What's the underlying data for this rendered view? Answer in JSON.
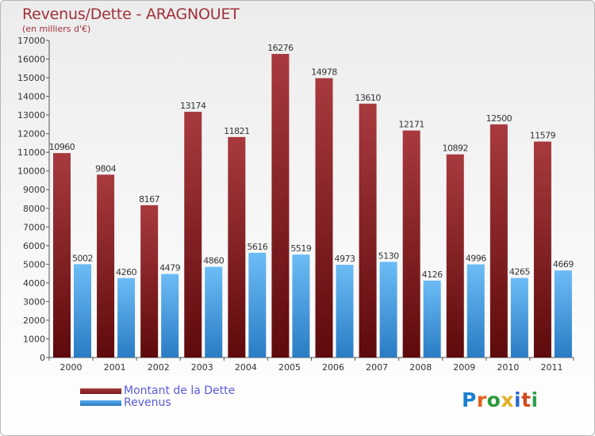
{
  "header": {
    "title": "Revenus/Dette - ARAGNOUET",
    "subtitle": "(en milliers d'€)"
  },
  "brand": {
    "letters": [
      "P",
      "r",
      "o",
      "x",
      "i",
      "t",
      "i"
    ],
    "colors": [
      "#1a7fd0",
      "#e0601a",
      "#2a9a3a",
      "#e0b020",
      "#2a6ad0",
      "#d04a1a",
      "#30a050"
    ]
  },
  "colors": {
    "debt": "#7a1c1e",
    "debt_light": "#a6373a",
    "revenue": "#5aaef0",
    "revenue_dark": "#2a78c0",
    "axis": "#555555",
    "grid": "#c8c8c8"
  },
  "chart_data": {
    "type": "bar",
    "categories": [
      "2000",
      "2001",
      "2002",
      "2003",
      "2004",
      "2005",
      "2006",
      "2007",
      "2008",
      "2009",
      "2010",
      "2011"
    ],
    "series": [
      {
        "name": "Montant de la Dette",
        "values": [
          10960,
          9804,
          8167,
          13174,
          11821,
          16276,
          14978,
          13610,
          12171,
          10892,
          12500,
          11579
        ]
      },
      {
        "name": "Revenus",
        "values": [
          5002,
          4260,
          4479,
          4860,
          5616,
          5519,
          4973,
          5130,
          4126,
          4996,
          4265,
          4669
        ]
      }
    ],
    "yticks": [
      0,
      1000,
      2000,
      3000,
      4000,
      5000,
      6000,
      7000,
      8000,
      9000,
      10000,
      11000,
      12000,
      13000,
      14000,
      15000,
      16000,
      17000
    ],
    "ylim": [
      0,
      17000
    ],
    "grid": false,
    "legend_position": "bottom-left"
  }
}
